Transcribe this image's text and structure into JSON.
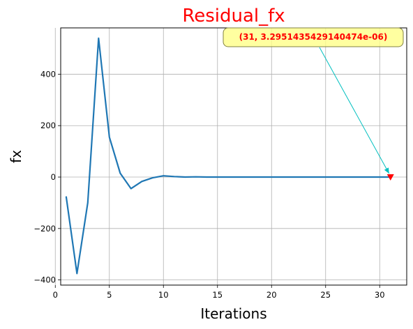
{
  "chart_data": {
    "type": "line",
    "title": "Residual_fx",
    "title_color": "#ff0000",
    "xlabel": "Iterations",
    "ylabel": "fx",
    "xlim": [
      0.5,
      32.5
    ],
    "ylim": [
      -420,
      580
    ],
    "xticks": [
      0,
      5,
      10,
      15,
      20,
      25,
      30
    ],
    "yticks": [
      -400,
      -200,
      0,
      200,
      400
    ],
    "xtick_labels": [
      "0",
      "5",
      "10",
      "15",
      "20",
      "25",
      "30"
    ],
    "ytick_labels": [
      "−400",
      "−200",
      "0",
      "200",
      "400"
    ],
    "grid": true,
    "series": [
      {
        "color": "#1f77b4",
        "x": [
          1,
          2,
          3,
          4,
          5,
          6,
          7,
          8,
          9,
          10,
          11,
          12,
          13,
          14,
          15,
          16,
          17,
          18,
          19,
          20,
          21,
          22,
          23,
          24,
          25,
          26,
          27,
          28,
          29,
          30,
          31
        ],
        "y": [
          -75,
          -375,
          -100,
          540,
          155,
          15,
          -45,
          -17,
          -3,
          5,
          2,
          0,
          1,
          0,
          0,
          0,
          0,
          0,
          0,
          0,
          0,
          0,
          0,
          0,
          0,
          0,
          0,
          0,
          0,
          0,
          0
        ]
      }
    ],
    "marker": {
      "x": 31,
      "y": 0,
      "color": "#ff0000",
      "shape": "triangle-down"
    },
    "annotation": {
      "text": "(31, 3.2951435429140474e-06)",
      "text_color": "#ff0000",
      "box_color": "#ffff88",
      "arrow_color": "#00bfbf",
      "point": [
        31,
        0
      ]
    }
  }
}
